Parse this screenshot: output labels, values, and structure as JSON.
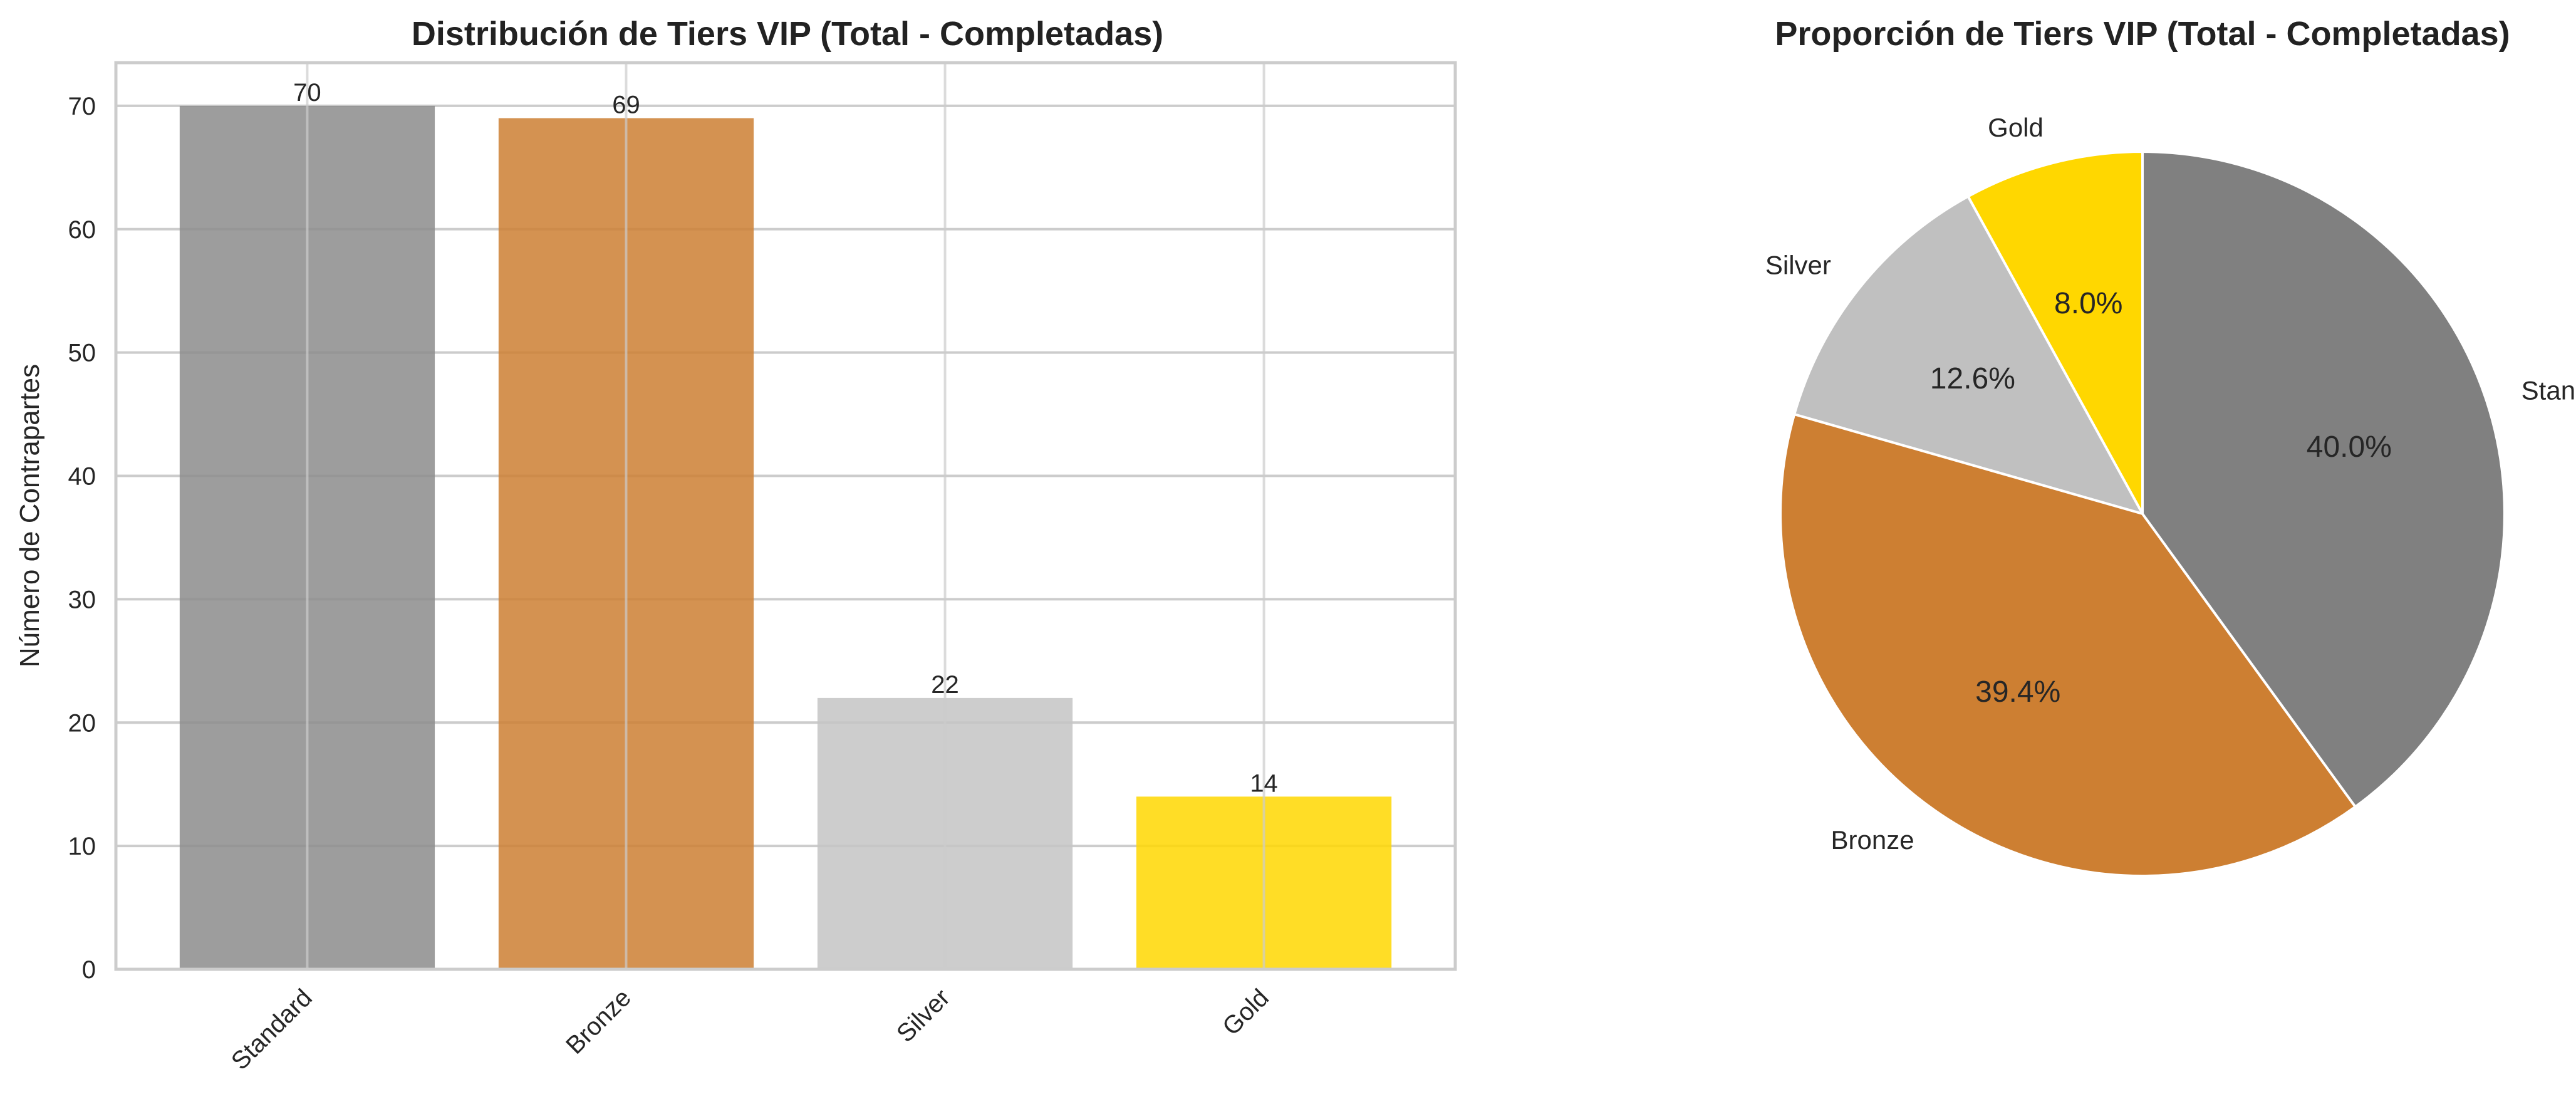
{
  "chart_data": [
    {
      "type": "bar",
      "title": "Distribución de Tiers VIP (Total - Completadas)",
      "xlabel": "",
      "ylabel": "Número de Contrapartes",
      "categories": [
        "Standard",
        "Bronze",
        "Silver",
        "Gold"
      ],
      "values": [
        70,
        69,
        22,
        14
      ],
      "colors": [
        "#8c8c8c",
        "#cd7f32",
        "#c4c4c4",
        "#ffd700"
      ],
      "ylim": [
        0,
        73.5
      ],
      "yticks": [
        0,
        10,
        20,
        30,
        40,
        50,
        60,
        70
      ],
      "grid": true,
      "legend": "none"
    },
    {
      "type": "pie",
      "title": "Proporción de Tiers VIP (Total - Completadas)",
      "labels": [
        "Gold",
        "Silver",
        "Bronze",
        "Standard"
      ],
      "values": [
        14,
        22,
        69,
        70
      ],
      "percent_labels": [
        "8.0%",
        "12.6%",
        "39.4%",
        "40.0%"
      ],
      "colors": [
        "#ffd700",
        "#c0c0c0",
        "#cd7f32",
        "#808080"
      ],
      "legend": "none"
    }
  ]
}
